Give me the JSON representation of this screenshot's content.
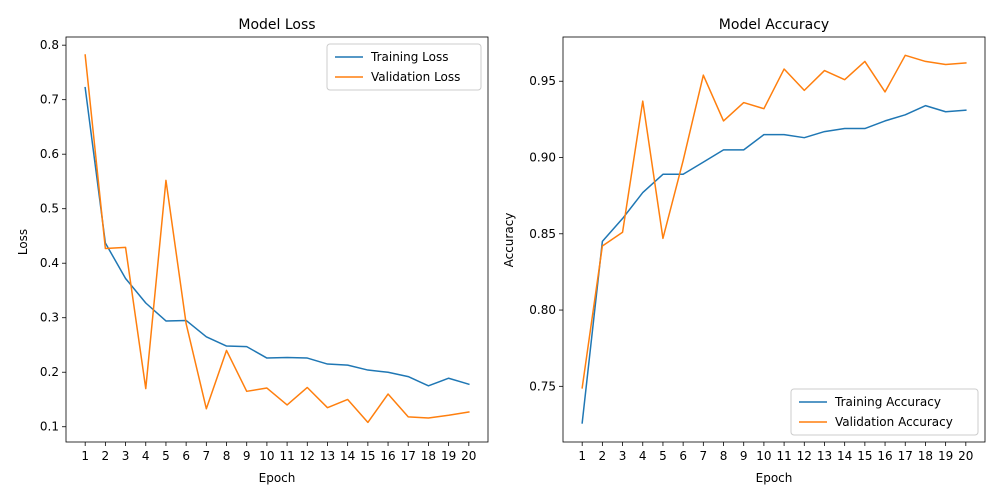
{
  "chart_data": [
    {
      "type": "line",
      "title": "Model Loss",
      "xlabel": "Epoch",
      "ylabel": "Loss",
      "x": [
        1,
        2,
        3,
        4,
        5,
        6,
        7,
        8,
        9,
        10,
        11,
        12,
        13,
        14,
        15,
        16,
        17,
        18,
        19,
        20
      ],
      "xlim": [
        0.05,
        20.95
      ],
      "ylim": [
        0.072,
        0.815
      ],
      "yticks": [
        0.1,
        0.2,
        0.3,
        0.4,
        0.5,
        0.6,
        0.7,
        0.8
      ],
      "ytick_labels": [
        "0.1",
        "0.2",
        "0.3",
        "0.4",
        "0.5",
        "0.6",
        "0.7",
        "0.8"
      ],
      "legend_position": "upper right",
      "grid": false,
      "series": [
        {
          "name": "Training Loss",
          "color": "#1f77b4",
          "values": [
            0.722,
            0.437,
            0.372,
            0.327,
            0.294,
            0.295,
            0.265,
            0.248,
            0.247,
            0.226,
            0.227,
            0.226,
            0.215,
            0.213,
            0.204,
            0.2,
            0.192,
            0.175,
            0.189,
            0.178
          ]
        },
        {
          "name": "Validation Loss",
          "color": "#ff7f0e",
          "values": [
            0.782,
            0.427,
            0.429,
            0.17,
            0.552,
            0.289,
            0.133,
            0.24,
            0.165,
            0.171,
            0.14,
            0.172,
            0.135,
            0.15,
            0.108,
            0.16,
            0.118,
            0.116,
            0.121,
            0.127
          ]
        }
      ]
    },
    {
      "type": "line",
      "title": "Model Accuracy",
      "xlabel": "Epoch",
      "ylabel": "Accuracy",
      "x": [
        1,
        2,
        3,
        4,
        5,
        6,
        7,
        8,
        9,
        10,
        11,
        12,
        13,
        14,
        15,
        16,
        17,
        18,
        19,
        20
      ],
      "xlim": [
        0.05,
        20.95
      ],
      "ylim": [
        0.7135,
        0.979
      ],
      "yticks": [
        0.75,
        0.8,
        0.85,
        0.9,
        0.95
      ],
      "ytick_labels": [
        "0.75",
        "0.80",
        "0.85",
        "0.90",
        "0.95"
      ],
      "legend_position": "lower right",
      "grid": false,
      "series": [
        {
          "name": "Training Accuracy",
          "color": "#1f77b4",
          "values": [
            0.726,
            0.845,
            0.86,
            0.877,
            0.889,
            0.889,
            0.897,
            0.905,
            0.905,
            0.915,
            0.915,
            0.913,
            0.917,
            0.919,
            0.919,
            0.924,
            0.928,
            0.934,
            0.93,
            0.931
          ]
        },
        {
          "name": "Validation Accuracy",
          "color": "#ff7f0e",
          "values": [
            0.749,
            0.842,
            0.851,
            0.937,
            0.847,
            0.898,
            0.954,
            0.924,
            0.936,
            0.932,
            0.958,
            0.944,
            0.957,
            0.951,
            0.963,
            0.943,
            0.967,
            0.963,
            0.961,
            0.962
          ]
        }
      ]
    }
  ]
}
